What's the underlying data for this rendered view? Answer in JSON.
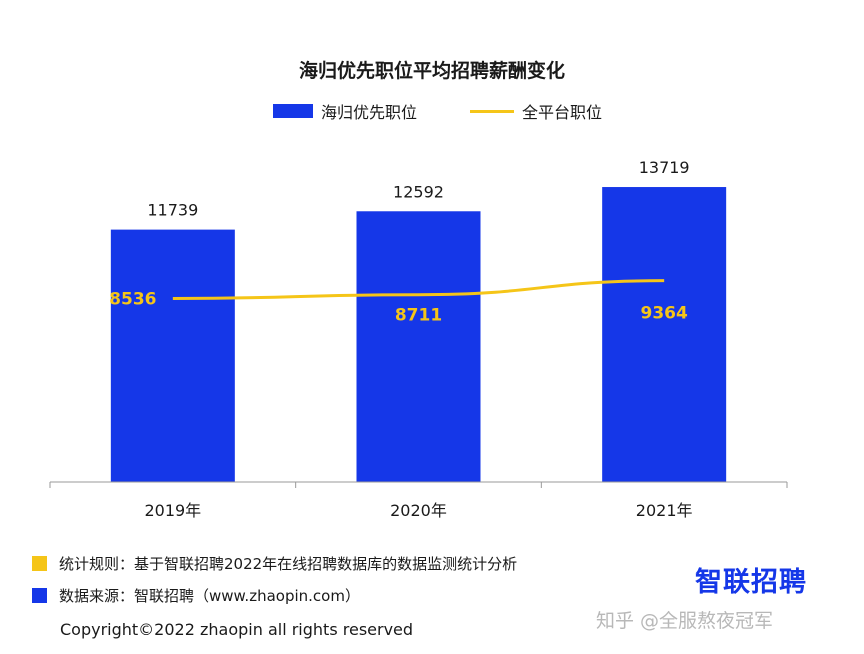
{
  "chart_data": {
    "type": "bar",
    "title": "海归优先职位平均招聘薪酬变化",
    "categories": [
      "2019年",
      "2020年",
      "2021年"
    ],
    "series": [
      {
        "name": "海归优先职位",
        "kind": "bar",
        "color": "#1537e8",
        "values": [
          11739,
          12592,
          13719
        ]
      },
      {
        "name": "全平台职位",
        "kind": "line",
        "color": "#f5c518",
        "values": [
          8536,
          8711,
          9364
        ]
      }
    ],
    "ylim": [
      0,
      15000
    ],
    "grid": false,
    "legend": "top-center"
  },
  "notes": [
    {
      "text": "统计规则：基于智联招聘2022年在线招聘数据库的数据监测统计分析",
      "color": "#f5c518"
    },
    {
      "text": "数据来源：智联招聘（www.zhaopin.com）",
      "color": "#1537e8"
    }
  ],
  "logo": {
    "text": "智联招聘",
    "color": "#1537e8"
  },
  "watermark": "知乎 @全服熬夜冠军",
  "copyright": "Copyright©2022 zhaopin all rights reserved"
}
